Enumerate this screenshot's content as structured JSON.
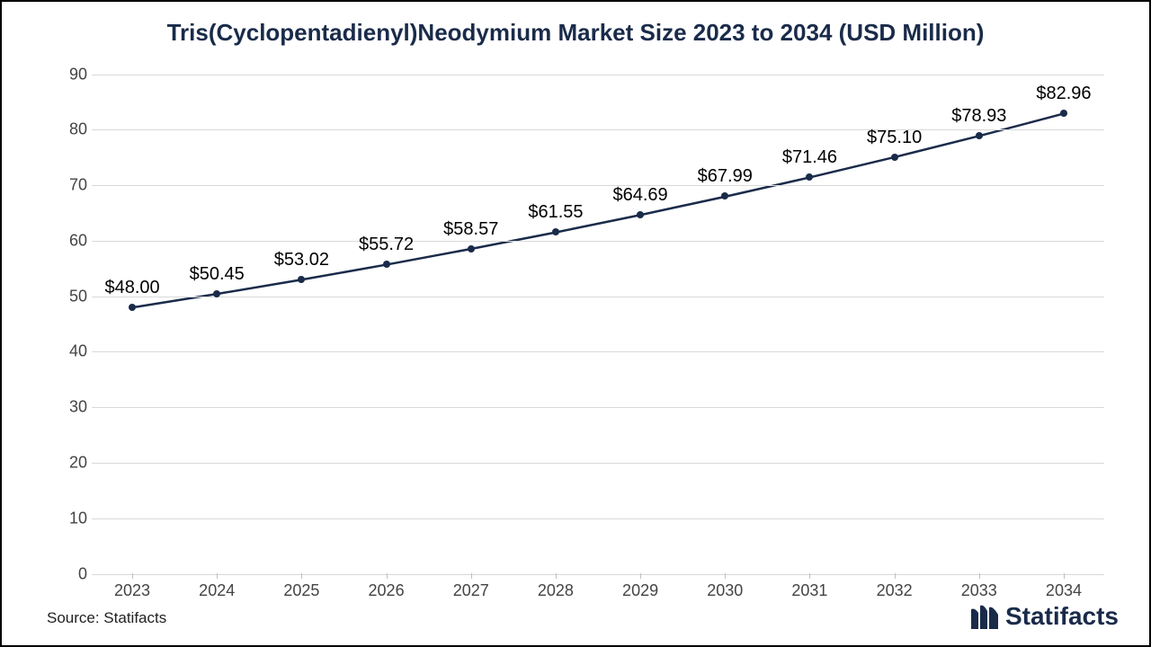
{
  "chart": {
    "type": "line",
    "title": "Tris(Cyclopentadienyl)Neodymium Market Size 2023 to 2034 (USD Million)",
    "title_color": "#1a2b4a",
    "title_fontsize": 26,
    "title_fontweight": "bold",
    "background_color": "#ffffff",
    "border_color": "#000000",
    "grid_color": "#d9d9d9",
    "axis_label_color": "#444444",
    "axis_label_fontsize": 18,
    "data_label_color": "#000000",
    "data_label_fontsize": 20,
    "data_label_prefix": "$",
    "line_color": "#1a2b4a",
    "line_width": 2.5,
    "marker_color": "#1a2b4a",
    "marker_size": 8,
    "ylim": [
      0,
      90
    ],
    "ytick_step": 10,
    "yticks": [
      0,
      10,
      20,
      30,
      40,
      50,
      60,
      70,
      80,
      90
    ],
    "categories": [
      "2023",
      "2024",
      "2025",
      "2026",
      "2027",
      "2028",
      "2029",
      "2030",
      "2031",
      "2032",
      "2033",
      "2034"
    ],
    "values": [
      48.0,
      50.45,
      53.02,
      55.72,
      58.57,
      61.55,
      64.69,
      67.99,
      71.46,
      75.1,
      78.93,
      82.96
    ],
    "value_labels": [
      "$48.00",
      "$50.45",
      "$53.02",
      "$55.72",
      "$58.57",
      "$61.55",
      "$64.69",
      "$67.99",
      "$71.46",
      "$75.10",
      "$78.93",
      "$82.96"
    ]
  },
  "footer": {
    "source_text": "Source: Statifacts"
  },
  "brand": {
    "name": "Statifacts",
    "color": "#1a2b4a"
  }
}
